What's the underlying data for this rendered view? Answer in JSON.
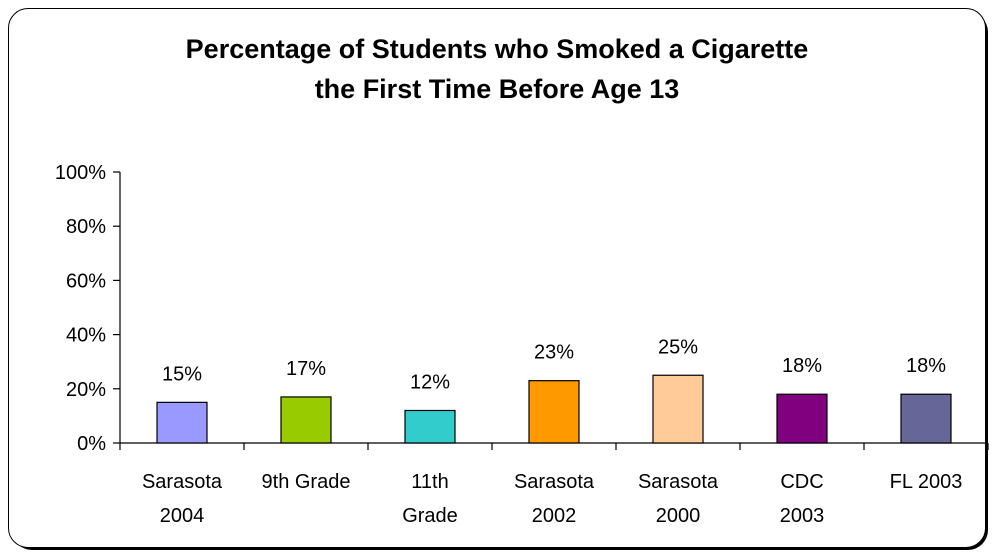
{
  "chart_data": {
    "type": "bar",
    "title_lines": [
      "Percentage of Students who Smoked a Cigarette",
      "the First Time Before Age 13"
    ],
    "categories": [
      [
        "Sarasota",
        "2004"
      ],
      [
        "9th Grade"
      ],
      [
        "11th",
        "Grade"
      ],
      [
        "Sarasota",
        "2002"
      ],
      [
        "Sarasota",
        "2000"
      ],
      [
        "CDC",
        "2003"
      ],
      [
        "FL 2003"
      ]
    ],
    "values": [
      15,
      17,
      12,
      23,
      25,
      18,
      18
    ],
    "data_labels": [
      "15%",
      "17%",
      "12%",
      "23%",
      "25%",
      "18%",
      "18%"
    ],
    "colors": [
      "#9999FF",
      "#99CC00",
      "#33CCCC",
      "#FF9900",
      "#FFCC99",
      "#800080",
      "#666699"
    ],
    "ylim": [
      0,
      100
    ],
    "yticks": [
      0,
      20,
      40,
      60,
      80,
      100
    ],
    "ytick_labels": [
      "0%",
      "20%",
      "40%",
      "60%",
      "80%",
      "100%"
    ],
    "grid": false,
    "legend": "none"
  }
}
